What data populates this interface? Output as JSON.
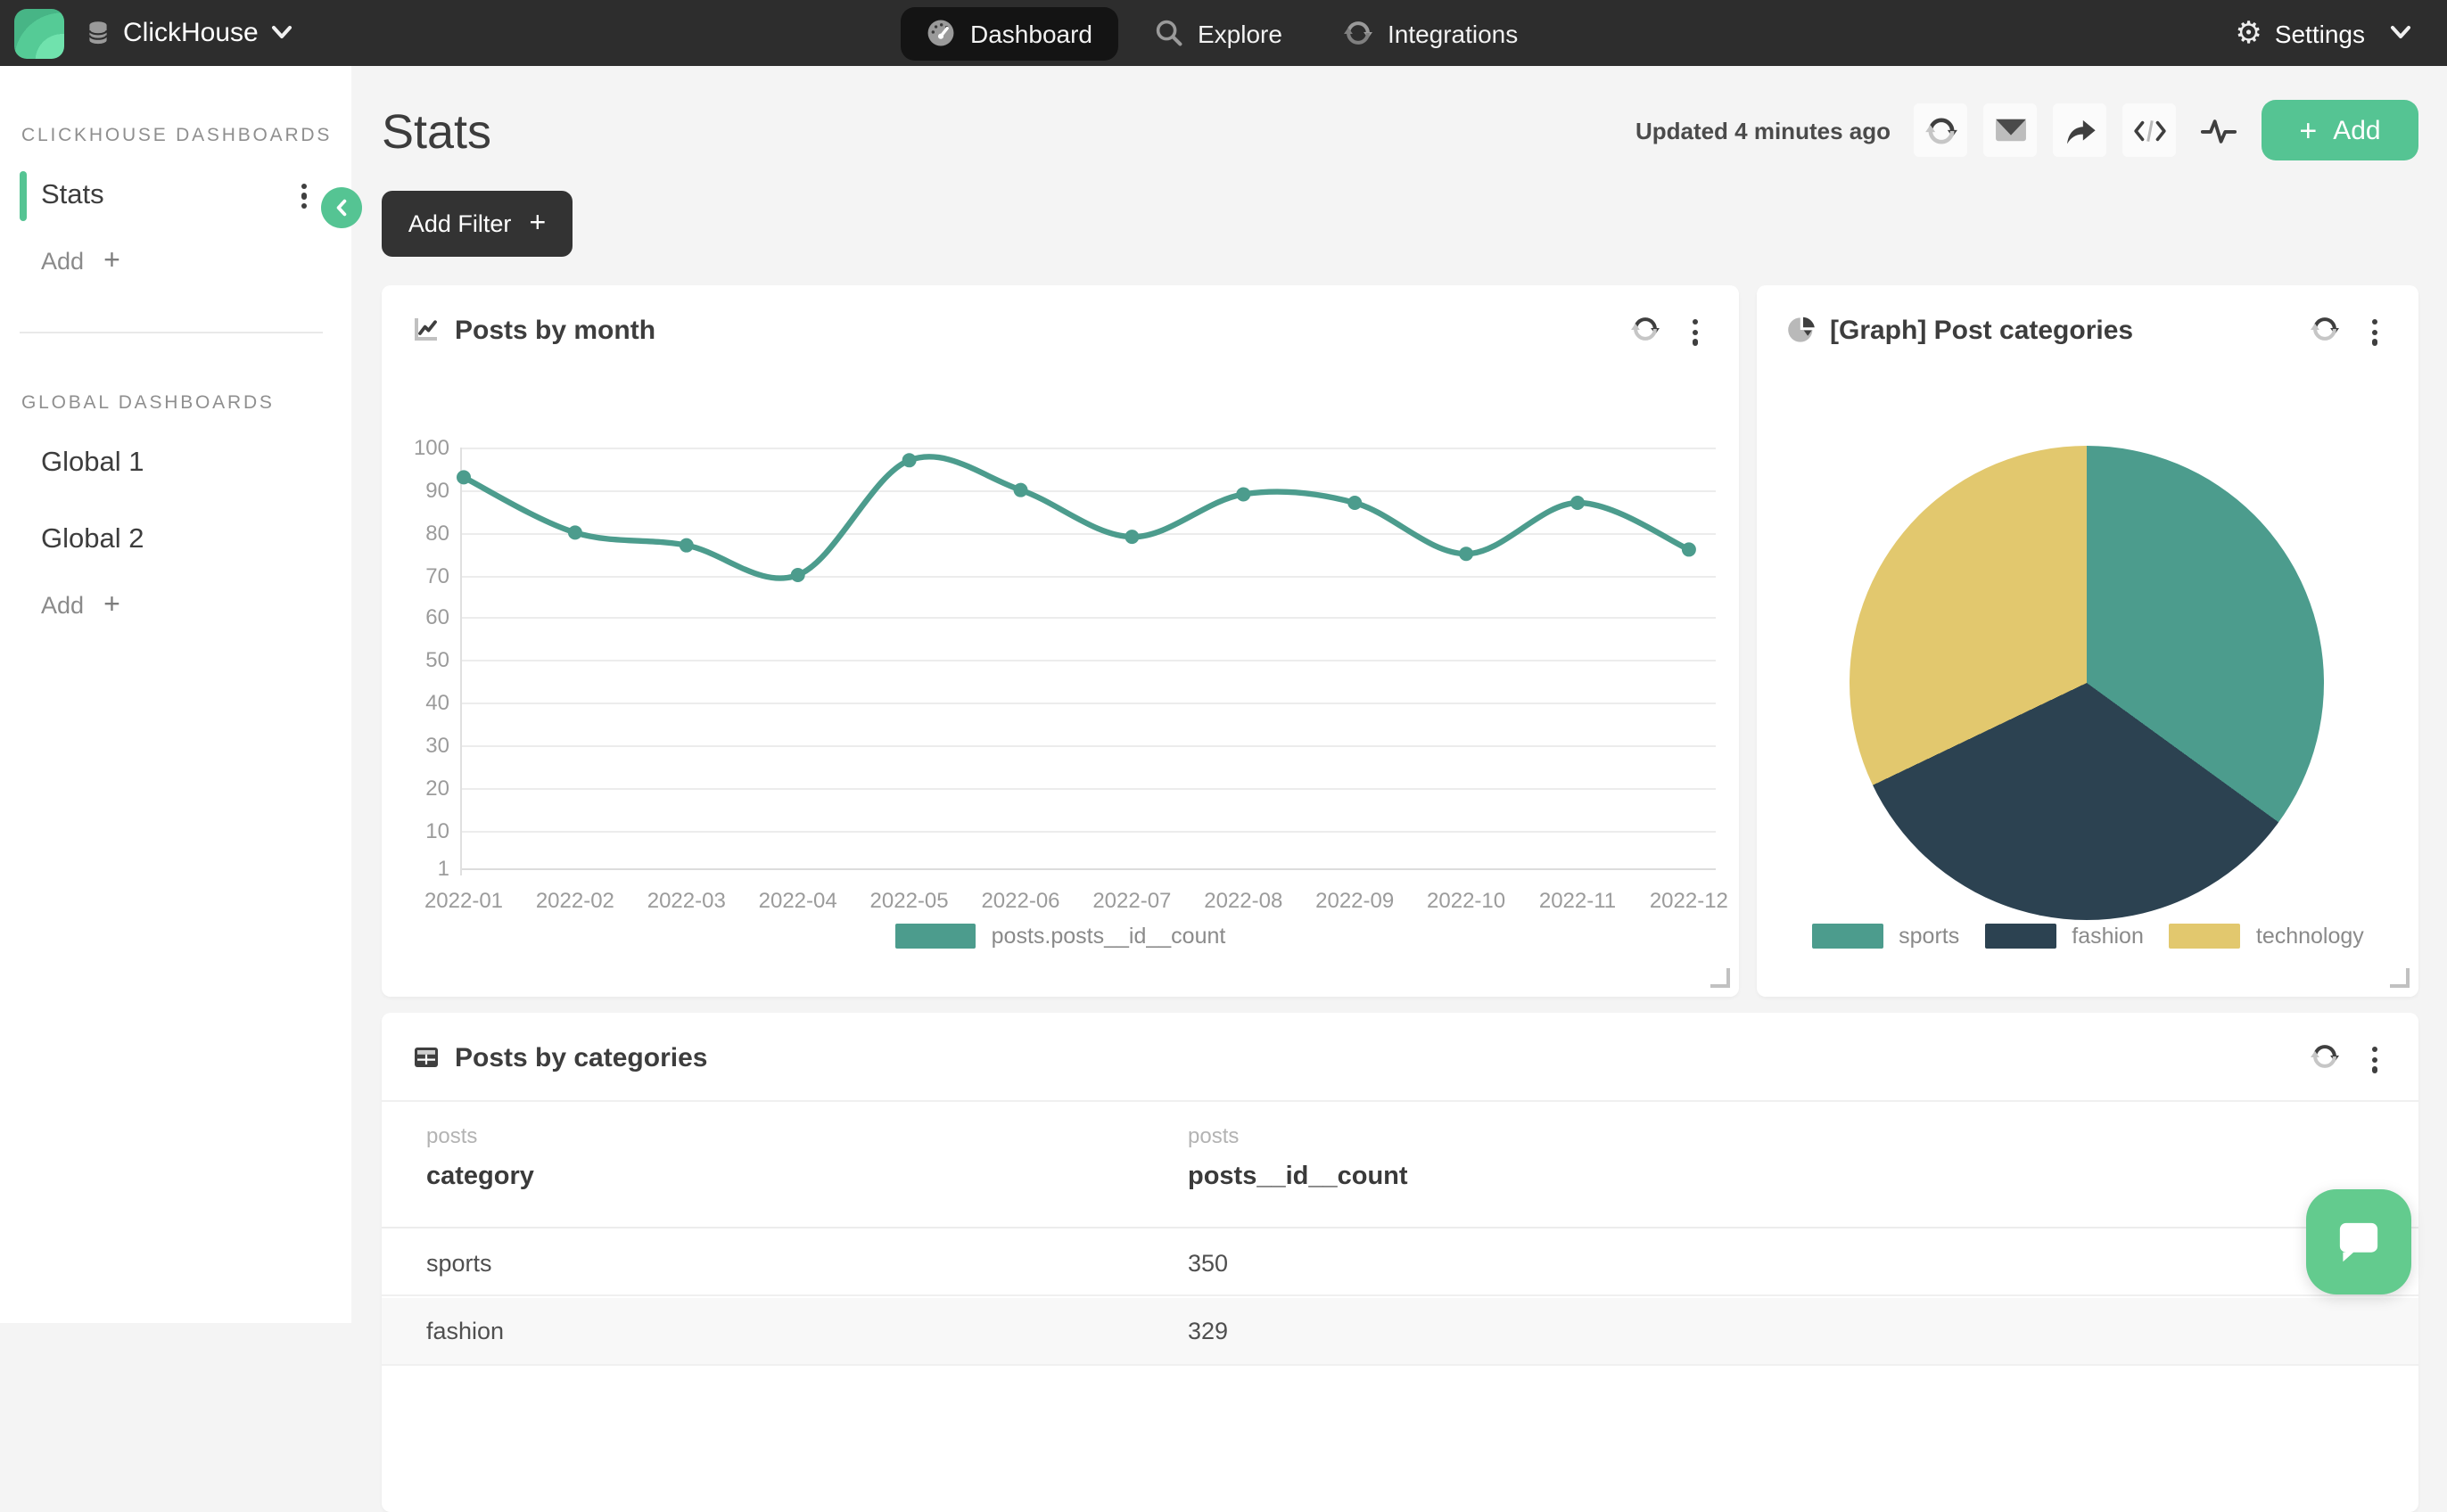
{
  "topbar": {
    "brand": "ClickHouse",
    "nav": [
      {
        "label": "Dashboard",
        "icon": "gauge-icon",
        "active": true
      },
      {
        "label": "Explore",
        "icon": "search-icon",
        "active": false
      },
      {
        "label": "Integrations",
        "icon": "sync-icon",
        "active": false
      }
    ],
    "settings_label": "Settings"
  },
  "sidebar": {
    "sections": [
      {
        "title": "CLICKHOUSE DASHBOARDS",
        "items": [
          {
            "label": "Stats",
            "active": true,
            "menu": true
          }
        ],
        "add_label": "Add"
      },
      {
        "title": "GLOBAL DASHBOARDS",
        "items": [
          {
            "label": "Global 1",
            "active": false,
            "menu": false
          },
          {
            "label": "Global 2",
            "active": false,
            "menu": false
          }
        ],
        "add_label": "Add"
      }
    ]
  },
  "header": {
    "title": "Stats",
    "updated_text": "Updated 4 minutes ago",
    "add_button_label": "Add",
    "add_filter_label": "Add Filter"
  },
  "chart_data": [
    {
      "type": "line",
      "title": "Posts by month",
      "x": [
        "2022-01",
        "2022-02",
        "2022-03",
        "2022-04",
        "2022-05",
        "2022-06",
        "2022-07",
        "2022-08",
        "2022-09",
        "2022-10",
        "2022-11",
        "2022-12"
      ],
      "series": [
        {
          "name": "posts.posts__id__count",
          "values": [
            93,
            80,
            77,
            70,
            97,
            90,
            79,
            89,
            87,
            75,
            87,
            76
          ],
          "color": "#4c9c8d"
        }
      ],
      "ylim": [
        1,
        100
      ],
      "yticks": [
        100,
        90,
        80,
        70,
        60,
        50,
        40,
        30,
        20,
        10,
        1
      ],
      "grid": true,
      "legend_position": "bottom"
    },
    {
      "type": "pie",
      "title": "[Graph] Post categories",
      "slices": [
        {
          "label": "sports",
          "value": 350,
          "color": "#4c9c8d"
        },
        {
          "label": "fashion",
          "value": 329,
          "color": "#2c4251"
        },
        {
          "label": "technology",
          "value": 321,
          "color": "#e2c86e"
        }
      ],
      "legend_position": "bottom"
    }
  ],
  "table_card": {
    "title": "Posts by categories",
    "columns": [
      {
        "group": "posts",
        "name": "category"
      },
      {
        "group": "posts",
        "name": "posts__id__count"
      }
    ],
    "rows": [
      {
        "category": "sports",
        "count": "350"
      },
      {
        "category": "fashion",
        "count": "329"
      }
    ]
  },
  "colors": {
    "accent_green": "#55c493",
    "chat_green": "#63cb8e",
    "topbar_bg": "#2d2d2d",
    "active_pill_bg": "#141414",
    "main_bg": "#f4f4f4",
    "series_teal": "#4c9c8d",
    "pie_navy": "#2c4251",
    "pie_yellow": "#e2c86e"
  }
}
